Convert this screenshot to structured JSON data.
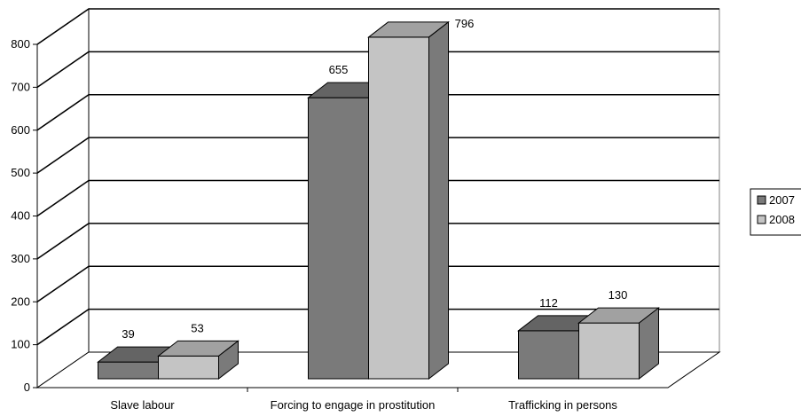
{
  "chart_data": {
    "type": "bar",
    "style": "3d-clustered-column",
    "categories": [
      "Slave labour",
      "Forcing to engage in prostitution",
      "Trafficking in persons"
    ],
    "series": [
      {
        "name": "2007",
        "values": [
          39,
          655,
          112
        ],
        "color": "#7a7a7a"
      },
      {
        "name": "2008",
        "values": [
          53,
          796,
          130
        ],
        "color": "#c4c4c4"
      }
    ],
    "data_labels": [
      [
        "39",
        "655",
        "112"
      ],
      [
        "53",
        "796",
        "130"
      ]
    ],
    "yticks": [
      0,
      100,
      200,
      300,
      400,
      500,
      600,
      700,
      800
    ],
    "ylim": [
      0,
      800
    ],
    "title": "",
    "xlabel": "",
    "ylabel": "",
    "grid": true,
    "legend_position": "right"
  }
}
